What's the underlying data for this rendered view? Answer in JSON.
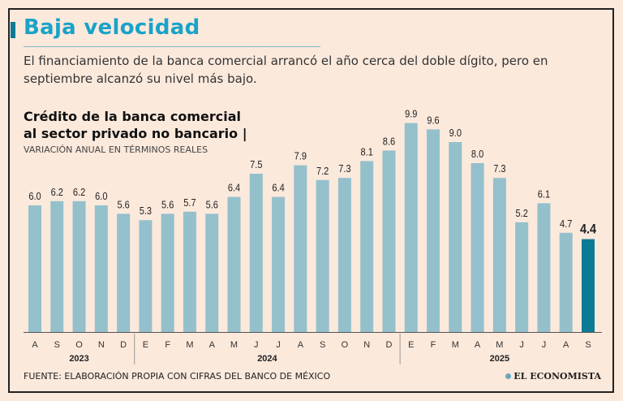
{
  "header": {
    "title": "Baja velocidad",
    "subtitle": "El financiamiento de la banca comercial arrancó el año cerca del doble dígito, pero en septiembre alcanzó su nivel más bajo."
  },
  "footer": {
    "source": "FUENTE: ELABORACIÓN PROPIA CON CIFRAS DEL BANCO DE MÉXICO",
    "logo": "EL ECONOMISTA"
  },
  "colors": {
    "bar": "#94c0cb",
    "highlight": "#0b7a95",
    "title": "#1aa3c8"
  },
  "chart_data": {
    "type": "bar",
    "title": "Crédito de la banca comercial al sector privado no bancario",
    "title_line1": "Crédito de la banca comercial",
    "title_line2": "al sector privado no bancario |",
    "ylabel": "VARIACIÓN ANUAL EN TÉRMINOS REALES",
    "xlabel": "",
    "ylim": [
      0,
      10
    ],
    "grid": false,
    "categories": [
      "A",
      "S",
      "O",
      "N",
      "D",
      "E",
      "F",
      "M",
      "A",
      "M",
      "J",
      "J",
      "A",
      "S",
      "O",
      "N",
      "D",
      "E",
      "F",
      "M",
      "A",
      "M",
      "J",
      "J",
      "A",
      "S"
    ],
    "years": [
      {
        "label": "2023",
        "start": 0,
        "end": 4
      },
      {
        "label": "2024",
        "start": 5,
        "end": 16
      },
      {
        "label": "2025",
        "start": 17,
        "end": 25
      }
    ],
    "values": [
      6.0,
      6.2,
      6.2,
      6.0,
      5.6,
      5.3,
      5.6,
      5.7,
      5.6,
      6.4,
      7.5,
      6.4,
      7.9,
      7.2,
      7.3,
      8.1,
      8.6,
      9.9,
      9.6,
      9.0,
      8.0,
      7.3,
      5.2,
      6.1,
      4.7,
      4.4
    ],
    "labels": [
      "6.0",
      "6.2",
      "6.2",
      "6.0",
      "5.6",
      "5.3",
      "5.6",
      "5.7",
      "5.6",
      "6.4",
      "7.5",
      "6.4",
      "7.9",
      "7.2",
      "7.3",
      "8.1",
      "8.6",
      "9.9",
      "9.6",
      "9.0",
      "8.0",
      "7.3",
      "5.2",
      "6.1",
      "4.7",
      "4.4"
    ],
    "highlight_index": 25
  }
}
